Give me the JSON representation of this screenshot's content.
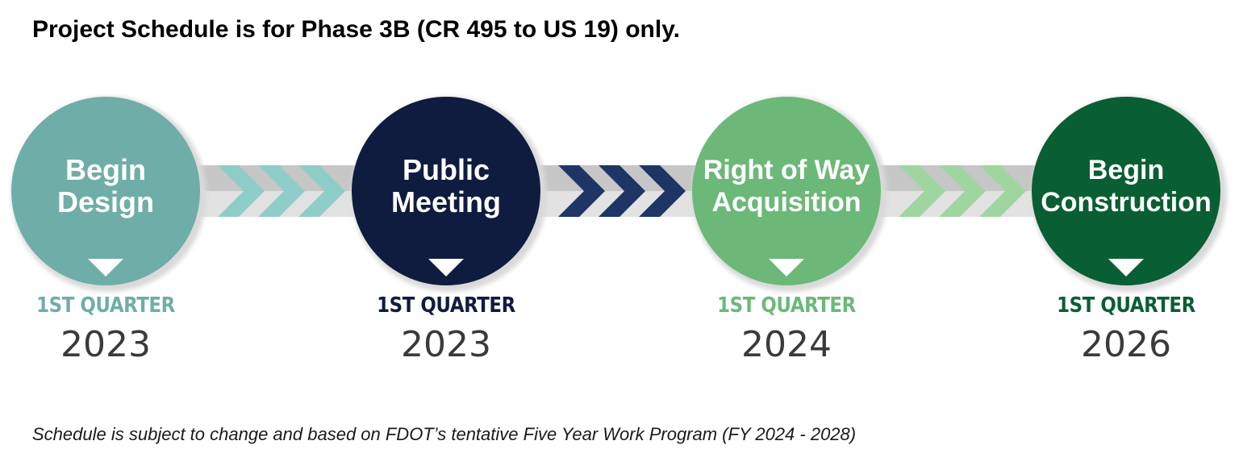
{
  "header": {
    "title": "Project Schedule is for Phase 3B (CR 495 to US 19) only."
  },
  "footer": {
    "note": "Schedule is subject to change and based on FDOT’s tentative Five Year Work Program (FY 2024 - 2028)"
  },
  "milestones": [
    {
      "line1": "Begin",
      "line2": "Design",
      "quarter": "1ST QUARTER",
      "year": "2023",
      "color": "#6fada8"
    },
    {
      "line1": "Public",
      "line2": "Meeting",
      "quarter": "1ST QUARTER",
      "year": "2023",
      "color": "#0f1c3f"
    },
    {
      "line1": "Right of Way",
      "line2": "Acquisition",
      "quarter": "1ST QUARTER",
      "year": "2024",
      "color": "#6cb878"
    },
    {
      "line1": "Begin",
      "line2": "Construction",
      "quarter": "1ST QUARTER",
      "year": "2026",
      "color": "#0a5e33"
    }
  ],
  "connectors": [
    {
      "chevron_color": "#8ecdc7"
    },
    {
      "chevron_color": "#1e3566"
    },
    {
      "chevron_color": "#9fd69f"
    }
  ],
  "colors": {
    "band": "#c6c6c6",
    "band_light": "#e2e2e2",
    "year_text": "#3a3a3a"
  }
}
